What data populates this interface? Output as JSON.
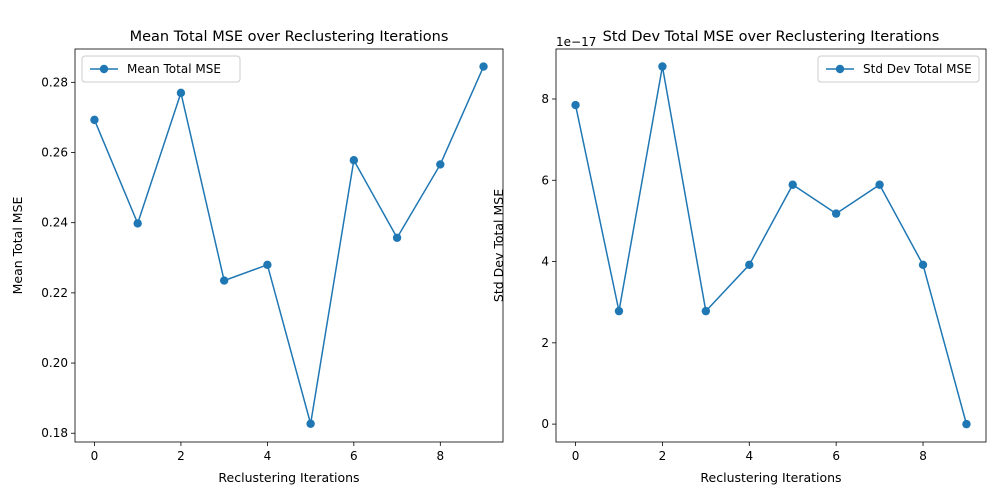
{
  "chart_data": [
    {
      "type": "line",
      "title": "Mean Total MSE over Reclustering Iterations",
      "xlabel": "Reclustering Iterations",
      "ylabel": "Mean Total MSE",
      "xlim": [
        -0.45,
        9.45
      ],
      "ylim": [
        0.1775,
        0.2895
      ],
      "xticks": [
        0,
        2,
        4,
        6,
        8
      ],
      "xtick_labels": [
        "0",
        "2",
        "4",
        "6",
        "8"
      ],
      "yticks": [
        0.18,
        0.2,
        0.22,
        0.24,
        0.26,
        0.28
      ],
      "ytick_labels": [
        "0.18",
        "0.20",
        "0.22",
        "0.24",
        "0.26",
        "0.28"
      ],
      "offset_text": "",
      "legend_position": "top-left",
      "grid": false,
      "series": [
        {
          "name": "Mean Total MSE",
          "color": "#1f77b4",
          "marker": "circle",
          "x": [
            0,
            1,
            2,
            3,
            4,
            5,
            6,
            7,
            8,
            9
          ],
          "y": [
            0.2693,
            0.2398,
            0.277,
            0.2235,
            0.228,
            0.1827,
            0.2578,
            0.2357,
            0.2566,
            0.2845
          ]
        }
      ]
    },
    {
      "type": "line",
      "title": "Std Dev Total MSE over Reclustering Iterations",
      "xlabel": "Reclustering Iterations",
      "ylabel": "Std Dev Total MSE",
      "xlim": [
        -0.45,
        9.45
      ],
      "ylim": [
        -4.4e-18,
        9.23e-17
      ],
      "xticks": [
        0,
        2,
        4,
        6,
        8
      ],
      "xtick_labels": [
        "0",
        "2",
        "4",
        "6",
        "8"
      ],
      "yticks": [
        0,
        2e-17,
        4e-17,
        6e-17,
        8e-17
      ],
      "ytick_labels": [
        "0",
        "2",
        "4",
        "6",
        "8"
      ],
      "offset_text": "1e−17",
      "legend_position": "top-right",
      "grid": false,
      "series": [
        {
          "name": "Std Dev Total MSE",
          "color": "#1f77b4",
          "marker": "circle",
          "x": [
            0,
            1,
            2,
            3,
            4,
            5,
            6,
            7,
            8,
            9
          ],
          "y": [
            7.85e-17,
            2.78e-17,
            8.8e-17,
            2.78e-17,
            3.92e-17,
            5.89e-17,
            5.18e-17,
            5.89e-17,
            3.92e-17,
            0
          ]
        }
      ]
    }
  ]
}
